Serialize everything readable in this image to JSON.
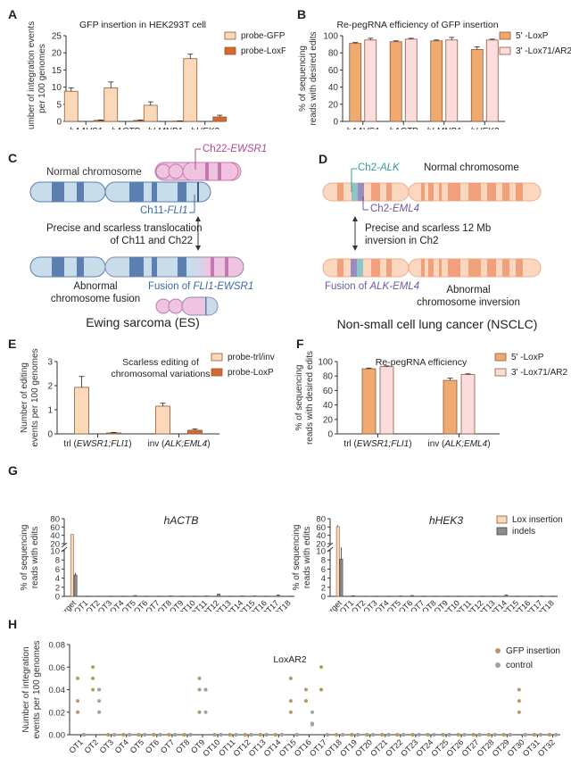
{
  "colors": {
    "probe_light": "#fbd8b8",
    "probe_dark": "#d9682a",
    "lox5": "#f0aa70",
    "lox3": "#fcdcdc",
    "bar_edge": "#8a5a3c",
    "indel": "#8c8c8c",
    "gfp_dot": "#b89a6a",
    "control_dot": "#a0a0a8",
    "ch11_light": "#c9dcea",
    "ch11_band": "#5a7fb0",
    "ch22_light": "#f0c4e0",
    "ch22_band": "#c07ab0",
    "ch2_light": "#fbd7bf",
    "ch2_band": "#f0a07a",
    "alk_color": "#8fc5c8",
    "eml4_color": "#9a8bc0",
    "ch11_text": "#3a6aa0",
    "ch22_text": "#b04a90",
    "alk_text": "#3a9a9a",
    "eml4_text": "#6a5aa0"
  },
  "panels": {
    "A": "A",
    "B": "B",
    "C": "C",
    "D": "D",
    "E": "E",
    "F": "F",
    "G": "G",
    "H": "H"
  },
  "diagram_c": {
    "normal_label": "Normal chromosome",
    "ch22_prefix": "Ch22-",
    "ch22_gene": "EWSR1",
    "ch11_prefix": "Ch11-",
    "ch11_gene": "FLI1",
    "arrow_text_1": "Precise and scarless translocation",
    "arrow_text_2": "of Ch11 and Ch22",
    "abnormal_1": "Abnormal",
    "abnormal_2": "chromosome fusion",
    "fusion_prefix": "Fusion of ",
    "fusion_gene": "FLI1-EWSR1",
    "disease": "Ewing sarcoma (ES)"
  },
  "diagram_d": {
    "alk_prefix": "Ch2-",
    "alk_gene": "ALK",
    "normal_label": "Normal chromosome",
    "eml4_prefix": "Ch2-",
    "eml4_gene": "EML4",
    "arrow_text_1": "Precise and scarless 12 Mb",
    "arrow_text_2": "inversion in Ch2",
    "fusion_prefix": "Fusion of ",
    "fusion_gene": "ALK-EML4",
    "abnormal_1": "Abnormal",
    "abnormal_2": "chromosome inversion",
    "disease": "Non-small cell lung cancer (NSCLC)"
  },
  "chart_data": [
    {
      "id": "A",
      "type": "bar",
      "title": "GFP insertion in HEK293T cell",
      "ylabel": "Number of integration events per 100 genomes",
      "ylabel_lines": [
        "Number of integration events",
        "per 100 genomes"
      ],
      "categories": [
        "hAAVS1",
        "hACTB",
        "hLMNB1",
        "hHEK3"
      ],
      "categories_italic": true,
      "ylim": [
        0,
        25
      ],
      "yticks": [
        0,
        5,
        10,
        15,
        20,
        25
      ],
      "legend": "top-right",
      "series": [
        {
          "name": "probe-GFP",
          "values": [
            8.8,
            9.8,
            4.7,
            18.3
          ],
          "errors": [
            1.0,
            1.7,
            1.0,
            1.3
          ]
        },
        {
          "name": "probe-LoxP",
          "values": [
            0.3,
            0.3,
            0.1,
            1.3
          ],
          "errors": [
            0.1,
            0.1,
            0.05,
            0.5
          ]
        }
      ]
    },
    {
      "id": "B",
      "type": "bar",
      "title": "Re-pegRNA efficiency of GFP insertion",
      "ylabel": "% of sequencing reads with desired edits",
      "ylabel_lines": [
        "% of sequencing",
        "reads with desired edits"
      ],
      "categories": [
        "hAAVS1",
        "hACTB",
        "hLMNB1",
        "hHEK3"
      ],
      "categories_italic": true,
      "ylim": [
        0,
        100
      ],
      "yticks": [
        0,
        20,
        40,
        60,
        80,
        100
      ],
      "legend": "top-right",
      "series": [
        {
          "name": "5' -LoxP",
          "values": [
            91,
            93,
            94,
            84
          ],
          "errors": [
            1,
            1,
            1,
            3
          ]
        },
        {
          "name": "3' -Lox71/AR2",
          "values": [
            95,
            96,
            95,
            95
          ],
          "errors": [
            2,
            1,
            3,
            1
          ]
        }
      ]
    },
    {
      "id": "E",
      "type": "bar",
      "title": "Scarless editing of chromosomal variations",
      "title_lines": [
        "Scarless editing of",
        "chromosomal variations"
      ],
      "ylabel": "Number of editing events per 100 genomes",
      "ylabel_lines": [
        "Number of editing",
        "events per 100 genomes"
      ],
      "categories": [
        "trl (EWSR1;FLI1)",
        "inv (ALK;EML4)"
      ],
      "category_parts": [
        [
          "trl (",
          "EWSR1;FLI1",
          ")"
        ],
        [
          "inv (",
          "ALK;EML4",
          ")"
        ]
      ],
      "ylim": [
        0,
        3
      ],
      "yticks": [
        0,
        1,
        2,
        3
      ],
      "legend": "top-right",
      "series": [
        {
          "name": "probe-trl/inv",
          "values": [
            1.93,
            1.15
          ],
          "errors": [
            0.45,
            0.12
          ]
        },
        {
          "name": "probe-LoxP",
          "values": [
            0.04,
            0.15
          ],
          "errors": [
            0.02,
            0.05
          ]
        }
      ]
    },
    {
      "id": "F",
      "type": "bar",
      "title": "Re-pegRNA efficiency",
      "ylabel": "% of sequencing reads with desired edits",
      "ylabel_lines": [
        "% of sequencing",
        "reads with desired edits"
      ],
      "categories": [
        "trl (EWSR1;FLI1)",
        "inv (ALK;EML4)"
      ],
      "category_parts": [
        [
          "trl (",
          "EWSR1;FLI1",
          ")"
        ],
        [
          "inv (",
          "ALK;EML4",
          ")"
        ]
      ],
      "ylim": [
        0,
        100
      ],
      "yticks": [
        0,
        20,
        40,
        60,
        80,
        100
      ],
      "legend": "top-right",
      "series": [
        {
          "name": "5' -LoxP",
          "values": [
            90,
            74
          ],
          "errors": [
            1,
            3
          ]
        },
        {
          "name": "3' -Lox71/AR2",
          "values": [
            93,
            82
          ],
          "errors": [
            1,
            1
          ]
        }
      ]
    },
    {
      "id": "G1",
      "type": "bar",
      "title": "hACTB",
      "ylabel": "% of sequencing reads with edits",
      "ylabel_lines": [
        "% of sequencing",
        "reads with edits"
      ],
      "categories": [
        "On-target",
        "OT1",
        "OT2",
        "OT3",
        "OT4",
        "OT5",
        "OT6",
        "OT7",
        "OT8",
        "OT9",
        "OT10",
        "OT11",
        "OT12",
        "OT13",
        "OT14",
        "OT15",
        "OT16",
        "OT17",
        "OT18"
      ],
      "yticks_low": [
        0,
        2,
        4,
        6,
        8,
        10
      ],
      "yticks_high": [
        20,
        40,
        60,
        80
      ],
      "axis_break": [
        10,
        20
      ],
      "series": [
        {
          "name": "Lox insertion",
          "values": [
            42,
            0,
            0,
            0,
            0,
            0,
            0,
            0,
            0,
            0,
            0,
            0,
            0,
            0,
            0,
            0,
            0,
            0,
            0
          ]
        },
        {
          "name": "indels",
          "values": [
            4.7,
            0.05,
            0.05,
            0.05,
            0.05,
            0.2,
            0.05,
            0.05,
            0.1,
            0.05,
            0.05,
            0.1,
            0.5,
            0.05,
            0.1,
            0.1,
            0.05,
            0.3,
            0.05
          ],
          "errors": [
            0.5,
            0,
            0,
            0,
            0,
            0,
            0,
            0,
            0,
            0,
            0,
            0,
            0.1,
            0,
            0,
            0,
            0,
            0.1,
            0
          ]
        }
      ]
    },
    {
      "id": "G2",
      "type": "bar",
      "title": "hHEK3",
      "ylabel": "% of sequencing reads with edits",
      "ylabel_lines": [
        "% of sequencing",
        "reads with edits"
      ],
      "categories": [
        "On-target",
        "OT1",
        "OT2",
        "OT3",
        "OT4",
        "OT5",
        "OT6",
        "OT7",
        "OT8",
        "OT9",
        "OT10",
        "OT11",
        "OT12",
        "OT13",
        "OT14",
        "OT15",
        "OT16",
        "OT17",
        "OT18"
      ],
      "yticks_low": [
        0,
        2,
        4,
        6,
        8,
        10
      ],
      "yticks_high": [
        20,
        40,
        60,
        80
      ],
      "axis_break": [
        10,
        20
      ],
      "legend": "top-right",
      "series": [
        {
          "name": "Lox insertion",
          "values": [
            61,
            0,
            0,
            0,
            0,
            0,
            0,
            0,
            0,
            0,
            0,
            0,
            0,
            0,
            0,
            0,
            0,
            0,
            0
          ],
          "errors": [
            3,
            0,
            0,
            0,
            0,
            0,
            0,
            0,
            0,
            0,
            0,
            0,
            0,
            0,
            0,
            0,
            0,
            0,
            0
          ]
        },
        {
          "name": "indels",
          "values": [
            8.2,
            0.15,
            0.05,
            0.05,
            0.05,
            0.1,
            0.2,
            0.05,
            0.05,
            0.05,
            0.05,
            0.05,
            0.05,
            0.05,
            0.3,
            0.05,
            0.05,
            0.1,
            0.05
          ],
          "errors": [
            2,
            0,
            0,
            0,
            0,
            0,
            0,
            0,
            0,
            0,
            0,
            0,
            0,
            0,
            0.1,
            0,
            0,
            0,
            0
          ]
        }
      ]
    },
    {
      "id": "H",
      "type": "scatter",
      "title": "LoxAR2",
      "ylabel": "Number of integration events per 100 genomes",
      "ylabel_lines": [
        "Number of integration",
        "events per 100 genomes"
      ],
      "categories": [
        "OT1",
        "OT2",
        "OT3",
        "OT4",
        "OT5",
        "OT6",
        "OT7",
        "OT8",
        "OT9",
        "OT10",
        "OT11",
        "OT12",
        "OT13",
        "OT14",
        "OT15",
        "OT16",
        "OT17",
        "OT18",
        "OT19",
        "OT20",
        "OT21",
        "OT22",
        "OT23",
        "OT24",
        "OT25",
        "OT26",
        "OT27",
        "OT28",
        "OT29",
        "OT30",
        "OT31",
        "OT32"
      ],
      "ylim": [
        0,
        0.08
      ],
      "yticks": [
        "0.00",
        "0.02",
        "0.04",
        "0.06",
        "0.08"
      ],
      "legend": "top-right",
      "series": [
        {
          "name": "GFP insertion",
          "points": [
            [
              0.05,
              0.03,
              0.02
            ],
            [
              0.06,
              0.05,
              0.04
            ],
            [
              0,
              0,
              0
            ],
            [
              0,
              0,
              0
            ],
            [
              0,
              0,
              0
            ],
            [
              0,
              0,
              0
            ],
            [
              0,
              0,
              0
            ],
            [
              0,
              0,
              0
            ],
            [
              0.05,
              0.04,
              0.02
            ],
            [
              0,
              0,
              0
            ],
            [
              0,
              0,
              0
            ],
            [
              0,
              0,
              0
            ],
            [
              0,
              0,
              0
            ],
            [
              0,
              0,
              0
            ],
            [
              0.05,
              0.03,
              0.02
            ],
            [
              0.04,
              0.03,
              0.03
            ],
            [
              0.06,
              0.04,
              0.04
            ],
            [
              0,
              0,
              0
            ],
            [
              0,
              0,
              0
            ],
            [
              0,
              0,
              0
            ],
            [
              0,
              0,
              0
            ],
            [
              0,
              0,
              0
            ],
            [
              0,
              0,
              0
            ],
            [
              0,
              0,
              0
            ],
            [
              0,
              0,
              0
            ],
            [
              0,
              0,
              0
            ],
            [
              0,
              0,
              0
            ],
            [
              0,
              0,
              0
            ],
            [
              0,
              0,
              0
            ],
            [
              0.04,
              0.03,
              0.02
            ],
            [
              0,
              0,
              0
            ],
            [
              0,
              0,
              0
            ]
          ]
        },
        {
          "name": "control",
          "points": [
            [
              0,
              0,
              0
            ],
            [
              0.04,
              0.03,
              0.02
            ],
            [
              0,
              0,
              0
            ],
            [
              0,
              0,
              0
            ],
            [
              0,
              0,
              0
            ],
            [
              0,
              0,
              0
            ],
            [
              0,
              0,
              0
            ],
            [
              0,
              0,
              0
            ],
            [
              0.04,
              0.04,
              0.02
            ],
            [
              0,
              0,
              0
            ],
            [
              0,
              0,
              0
            ],
            [
              0,
              0,
              0
            ],
            [
              0,
              0,
              0
            ],
            [
              0,
              0,
              0
            ],
            [
              0,
              0,
              0
            ],
            [
              0.02,
              0.01,
              0.009
            ],
            [
              0,
              0,
              0
            ],
            [
              0,
              0,
              0
            ],
            [
              0,
              0,
              0
            ],
            [
              0,
              0,
              0
            ],
            [
              0,
              0,
              0
            ],
            [
              0,
              0,
              0
            ],
            [
              0,
              0,
              0
            ],
            [
              0,
              0,
              0
            ],
            [
              0,
              0,
              0
            ],
            [
              0,
              0,
              0
            ],
            [
              0,
              0,
              0
            ],
            [
              0,
              0,
              0
            ],
            [
              0,
              0,
              0
            ],
            [
              0,
              0,
              0
            ],
            [
              0,
              0,
              0
            ],
            [
              0,
              0,
              0
            ]
          ]
        }
      ]
    }
  ]
}
